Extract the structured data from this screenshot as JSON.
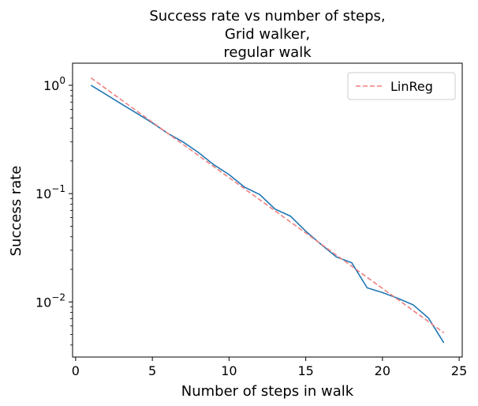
{
  "chart_data": {
    "type": "line",
    "title_lines": [
      "Success rate vs number of steps,",
      "Grid walker,",
      "regular walk"
    ],
    "xlabel": "Number of steps in walk",
    "ylabel": "Success rate",
    "xlim": [
      -0.2,
      25.2
    ],
    "ylim": [
      0.0031,
      1.6
    ],
    "yscale": "log",
    "x_ticks": [
      0,
      5,
      10,
      15,
      20,
      25
    ],
    "y_ticks": [
      {
        "value": 1,
        "base": "10",
        "exp": "0"
      },
      {
        "value": 0.1,
        "base": "10",
        "exp": "−1"
      },
      {
        "value": 0.01,
        "base": "10",
        "exp": "−2"
      }
    ],
    "legend": {
      "position": "upper right",
      "entries": [
        "LinReg"
      ]
    },
    "series": [
      {
        "color": "#1f77b4",
        "style": "solid",
        "x": [
          1,
          2,
          3,
          4,
          5,
          6,
          7,
          8,
          9,
          10,
          11,
          12,
          13,
          14,
          15,
          16,
          17,
          18,
          19,
          20,
          21,
          22,
          23,
          24
        ],
        "values": [
          1.0,
          0.82,
          0.67,
          0.55,
          0.45,
          0.36,
          0.3,
          0.24,
          0.185,
          0.15,
          0.115,
          0.098,
          0.072,
          0.062,
          0.045,
          0.034,
          0.026,
          0.023,
          0.0135,
          0.0122,
          0.0108,
          0.0094,
          0.0071,
          0.0042
        ]
      },
      {
        "name": "LinReg",
        "color": "#f08080",
        "style": "dashed",
        "x": [
          1,
          24
        ],
        "values": [
          1.17,
          0.0052
        ]
      }
    ]
  }
}
